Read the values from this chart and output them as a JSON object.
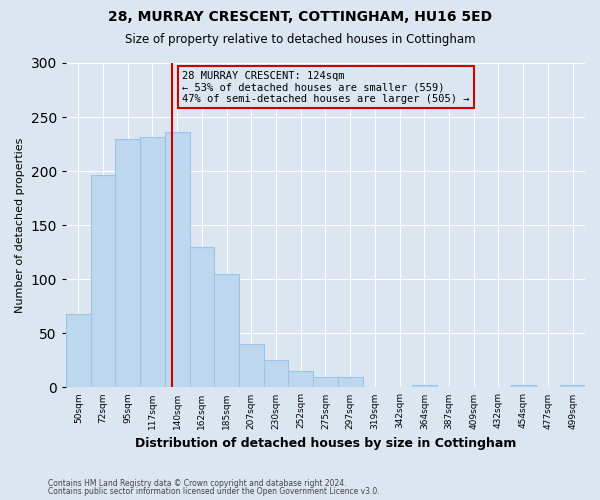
{
  "title": "28, MURRAY CRESCENT, COTTINGHAM, HU16 5ED",
  "subtitle": "Size of property relative to detached houses in Cottingham",
  "xlabel": "Distribution of detached houses by size in Cottingham",
  "ylabel": "Number of detached properties",
  "footnote1": "Contains HM Land Registry data © Crown copyright and database right 2024.",
  "footnote2": "Contains public sector information licensed under the Open Government Licence v3.0.",
  "bin_labels": [
    "50sqm",
    "72sqm",
    "95sqm",
    "117sqm",
    "140sqm",
    "162sqm",
    "185sqm",
    "207sqm",
    "230sqm",
    "252sqm",
    "275sqm",
    "297sqm",
    "319sqm",
    "342sqm",
    "364sqm",
    "387sqm",
    "409sqm",
    "432sqm",
    "454sqm",
    "477sqm",
    "499sqm"
  ],
  "bar_heights": [
    68,
    196,
    230,
    232,
    236,
    130,
    105,
    40,
    25,
    15,
    10,
    10,
    0,
    0,
    2,
    0,
    0,
    0,
    2,
    0,
    2
  ],
  "bar_color": "#bdd7ee",
  "bar_edge_color": "#9dc3e6",
  "bg_color": "#dce6f1",
  "grid_color": "#ffffff",
  "vline_x": 124,
  "vline_color": "#cc0000",
  "annotation_lines": [
    "28 MURRAY CRESCENT: 124sqm",
    "← 53% of detached houses are smaller (559)",
    "47% of semi-detached houses are larger (505) →"
  ],
  "ylim": [
    0,
    300
  ],
  "yticks": [
    0,
    50,
    100,
    150,
    200,
    250,
    300
  ],
  "n_bars": 21,
  "bar_width": 1.0
}
